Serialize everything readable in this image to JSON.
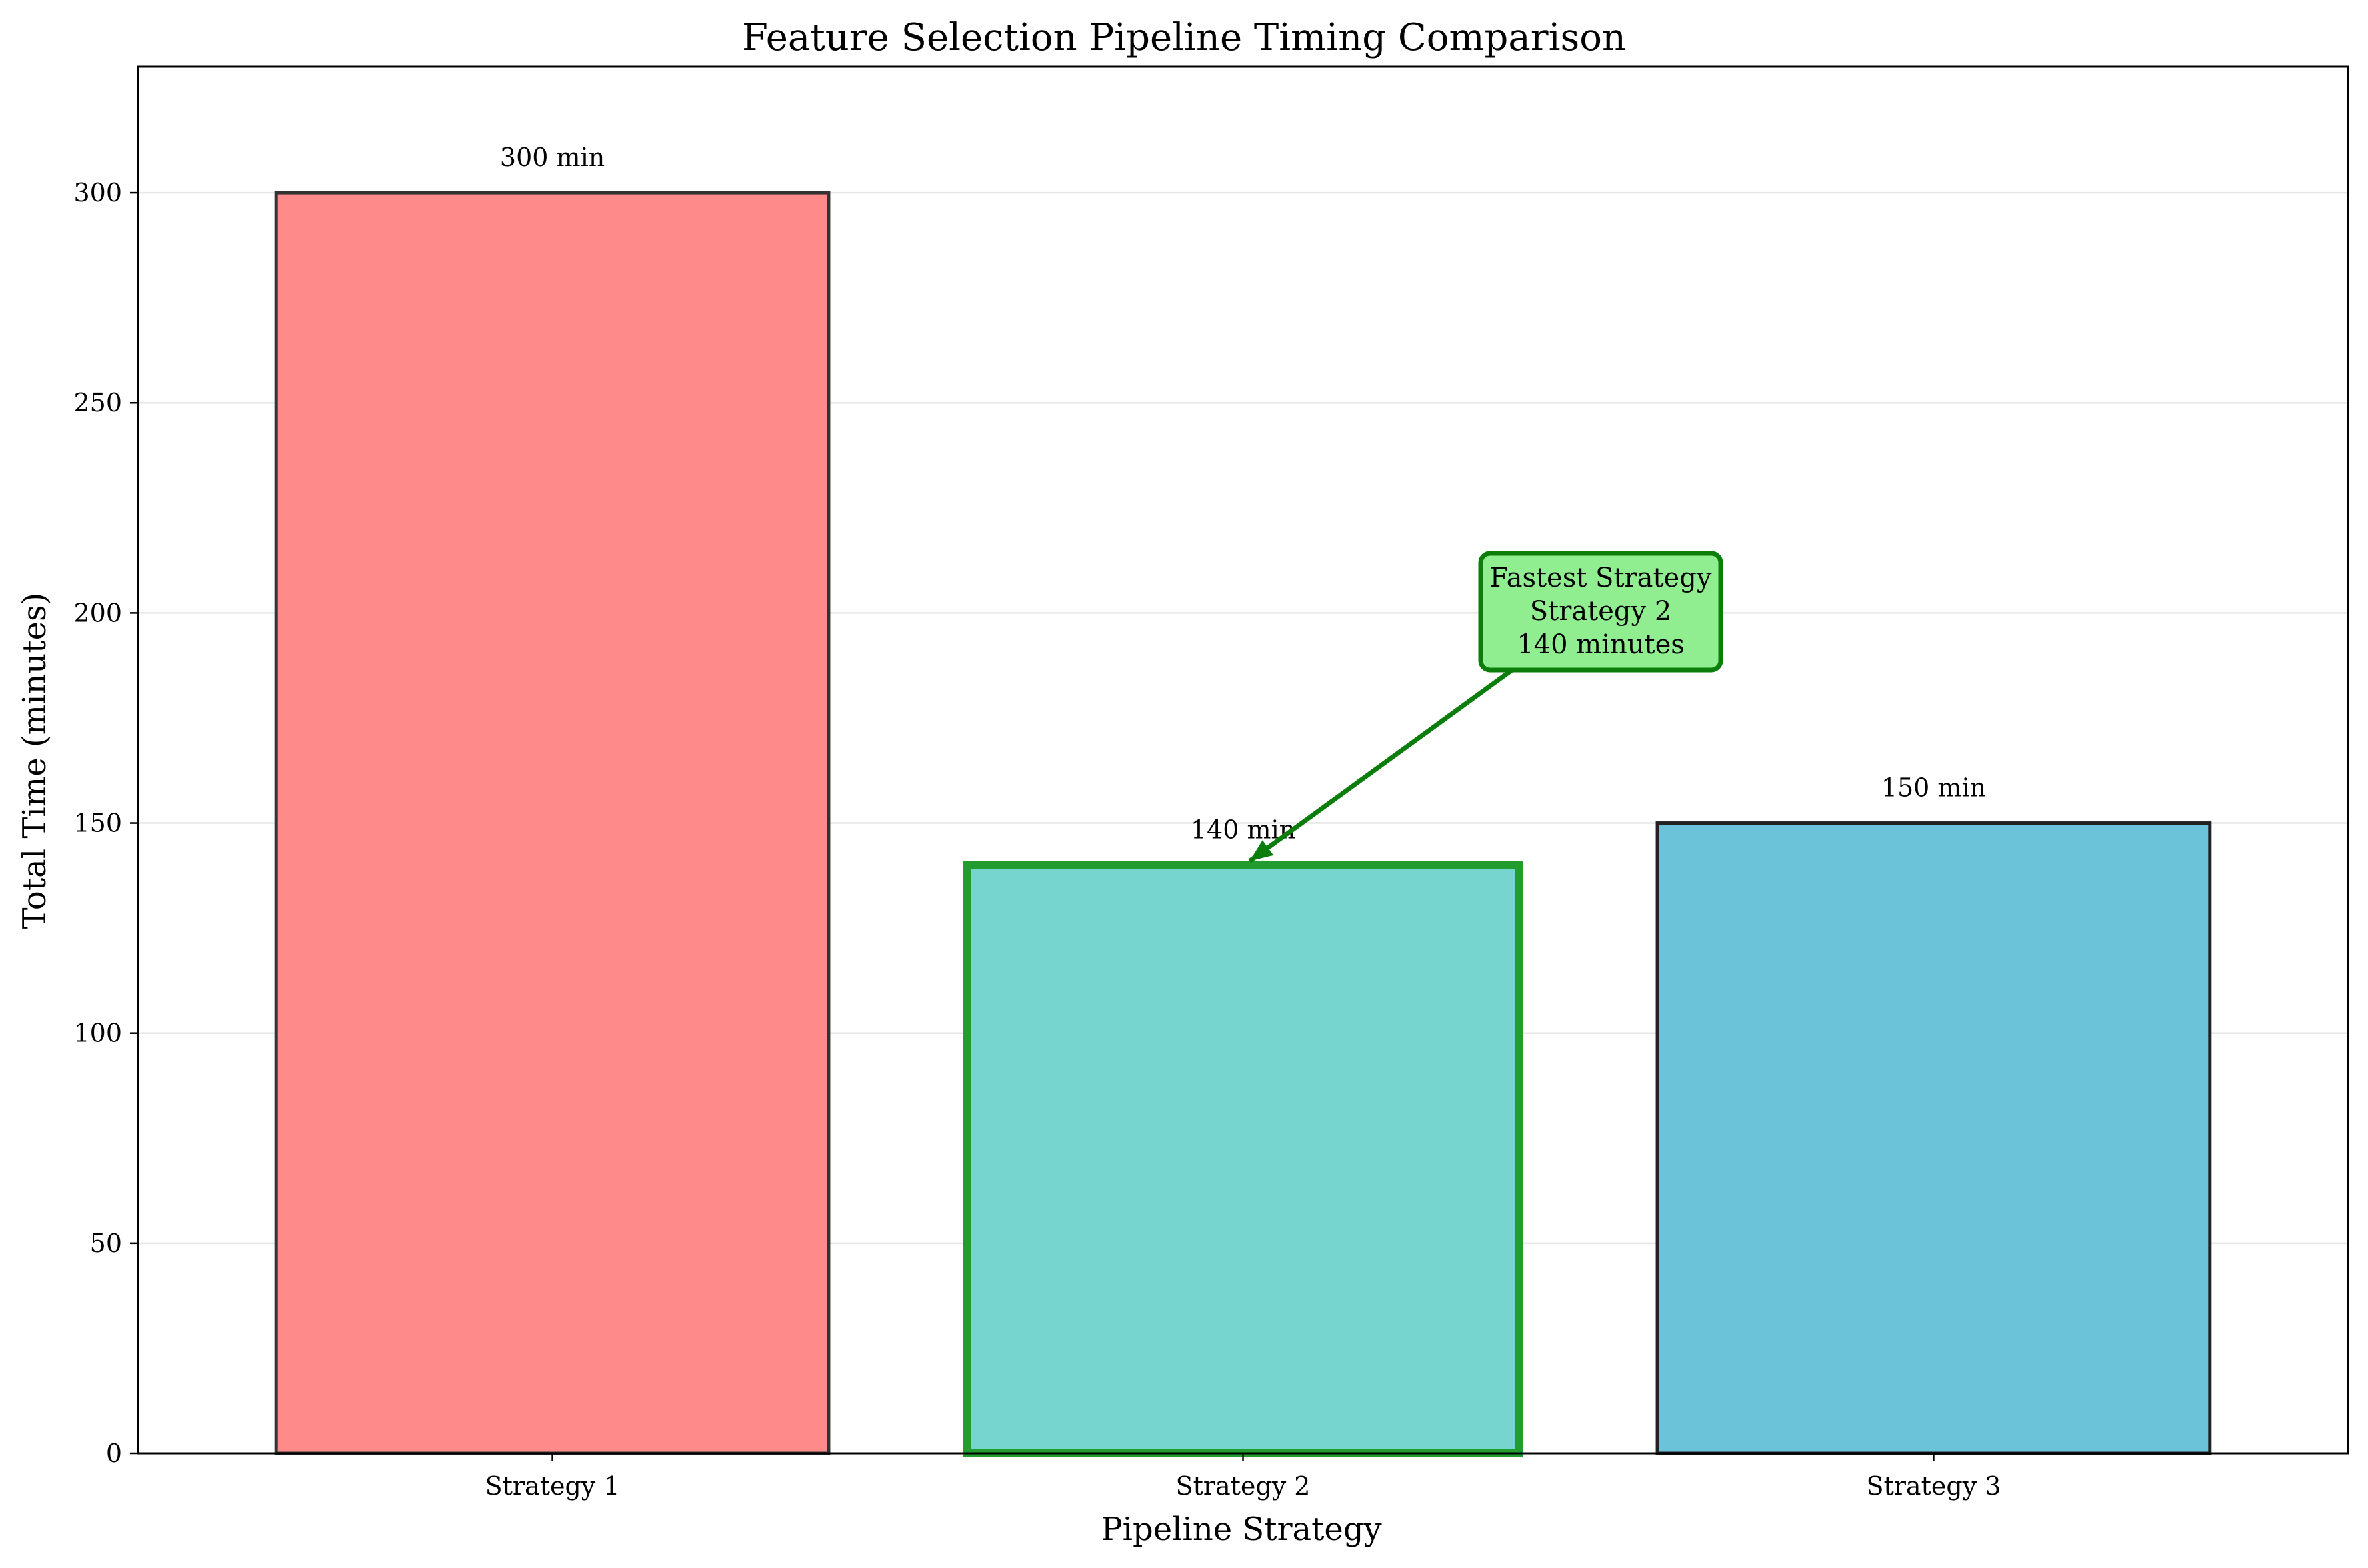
{
  "chart_data": {
    "type": "bar",
    "title": "Feature Selection Pipeline Timing Comparison",
    "xlabel": "Pipeline Strategy",
    "ylabel": "Total Time (minutes)",
    "categories": [
      "Strategy 1",
      "Strategy 2",
      "Strategy 3"
    ],
    "values": [
      300,
      140,
      150
    ],
    "data_labels": [
      "300 min",
      "140 min",
      "150 min"
    ],
    "ylim": [
      0,
      330
    ],
    "yticks": [
      0,
      50,
      100,
      150,
      200,
      250,
      300
    ],
    "ytick_labels": [
      "0",
      "50",
      "100",
      "150",
      "200",
      "250",
      "300"
    ],
    "grid": "y",
    "legend": "none",
    "colors": {
      "bars": [
        "#ff8a8a",
        "#76d6cf",
        "#6ac3d9"
      ],
      "edges": [
        "#333333",
        "#229b2f",
        "#222222"
      ],
      "highlight": "#0a7d0a",
      "annotation_fill": "#90ee90"
    },
    "highlight_index": 1,
    "annotation": {
      "lines": [
        "Fastest Strategy",
        "Strategy 2",
        "140 minutes"
      ],
      "target_category": "Strategy 2",
      "target_value": 140
    }
  }
}
